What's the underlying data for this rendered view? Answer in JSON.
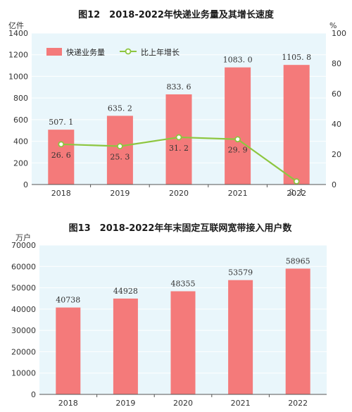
{
  "chart_data": [
    {
      "type": "bar",
      "title": "图12　2018-2022年快递业务量及其增长速度",
      "ylabel": "亿件",
      "y2label": "%",
      "categories": [
        "2018",
        "2019",
        "2020",
        "2021",
        "2022"
      ],
      "ylim": [
        0,
        1400
      ],
      "yticks": [
        0,
        200,
        400,
        600,
        800,
        1000,
        1200,
        1400
      ],
      "y2lim": [
        0,
        100
      ],
      "y2ticks": [
        0,
        20,
        40,
        60,
        80,
        100
      ],
      "legend_position": "top-left",
      "series": [
        {
          "name": "快递业务量",
          "type": "bar",
          "axis": "left",
          "values": [
            507.1,
            635.2,
            833.6,
            1083.0,
            1105.8
          ],
          "labels": [
            "507. 1",
            "635. 2",
            "833. 6",
            "1083. 0",
            "1105. 8"
          ]
        },
        {
          "name": "比上年增长",
          "type": "line",
          "axis": "right",
          "values": [
            26.6,
            25.3,
            31.2,
            29.9,
            2.1
          ],
          "labels": [
            "26. 6",
            "25. 3",
            "31. 2",
            "29. 9",
            "2. 1"
          ]
        }
      ],
      "colors": {
        "bar": "#f47a7a",
        "line": "#8dc63f",
        "panel": "#e9f6fb"
      }
    },
    {
      "type": "bar",
      "title": "图13　2018-2022年年末固定互联网宽带接入用户数",
      "ylabel": "万户",
      "categories": [
        "2018",
        "2019",
        "2020",
        "2021",
        "2022"
      ],
      "ylim": [
        0,
        70000
      ],
      "yticks": [
        0,
        10000,
        20000,
        30000,
        40000,
        50000,
        60000,
        70000
      ],
      "series": [
        {
          "name": "",
          "type": "bar",
          "values": [
            40738,
            44928,
            48355,
            53579,
            58965
          ],
          "labels": [
            "40738",
            "44928",
            "48355",
            "53579",
            "58965"
          ]
        }
      ],
      "colors": {
        "bar": "#f47a7a",
        "panel": "#e9f6fb"
      }
    }
  ]
}
